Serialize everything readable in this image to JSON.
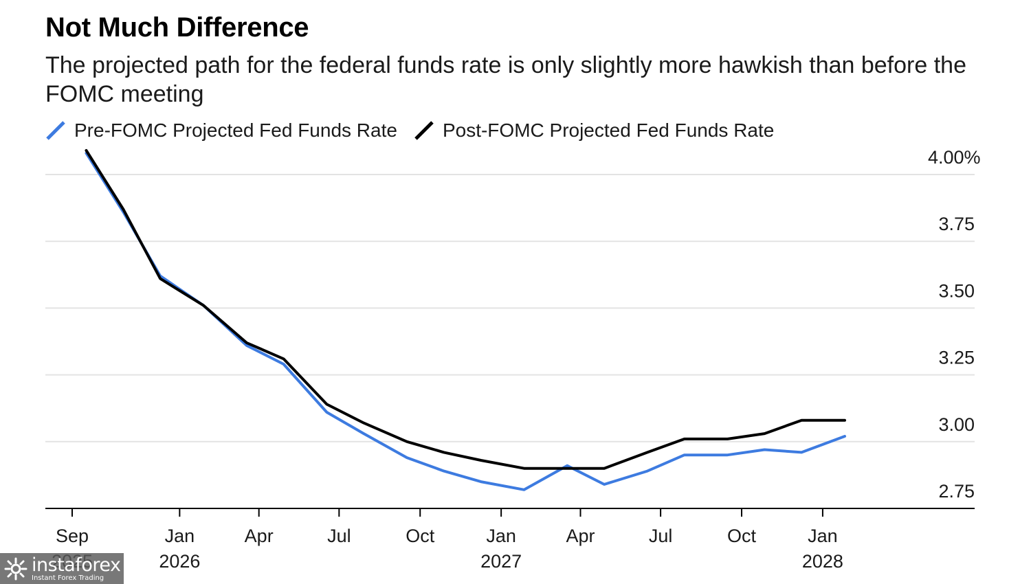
{
  "title": "Not Much Difference",
  "subtitle": "The projected path for the federal funds rate is only slightly more hawkish than before the FOMC meeting",
  "watermark": {
    "name": "instaforex",
    "tagline": "Instant Forex Trading"
  },
  "colors": {
    "pre": "#3d7be0",
    "post": "#000000",
    "grid": "#e3e3e3",
    "axis": "#000000"
  },
  "chart_data": {
    "type": "line",
    "title": "Not Much Difference",
    "subtitle": "The projected path for the federal funds rate is only slightly more hawkish than before the FOMC meeting",
    "xlabel": "",
    "ylabel": "",
    "ylim": [
      2.68,
      4.08
    ],
    "xlim": [
      "2025-09-01",
      "2028-05-01"
    ],
    "grid": true,
    "legend_position": "top-left",
    "y_axis_side": "right",
    "y_ticks": [
      {
        "value": 4.0,
        "label": "4.00%"
      },
      {
        "value": 3.75,
        "label": "3.75"
      },
      {
        "value": 3.5,
        "label": "3.50"
      },
      {
        "value": 3.25,
        "label": "3.25"
      },
      {
        "value": 3.0,
        "label": "3.00"
      },
      {
        "value": 2.75,
        "label": "2.75"
      }
    ],
    "x_ticks": [
      {
        "date": "2025-09-01",
        "month": "Sep",
        "year": "2025"
      },
      {
        "date": "2026-01-01",
        "month": "Jan",
        "year": "2026"
      },
      {
        "date": "2026-04-01",
        "month": "Apr",
        "year": ""
      },
      {
        "date": "2026-07-01",
        "month": "Jul",
        "year": ""
      },
      {
        "date": "2026-10-01",
        "month": "Oct",
        "year": ""
      },
      {
        "date": "2027-01-01",
        "month": "Jan",
        "year": "2027"
      },
      {
        "date": "2027-04-01",
        "month": "Apr",
        "year": ""
      },
      {
        "date": "2027-07-01",
        "month": "Jul",
        "year": ""
      },
      {
        "date": "2027-10-01",
        "month": "Oct",
        "year": ""
      },
      {
        "date": "2028-01-01",
        "month": "Jan",
        "year": "2028"
      }
    ],
    "series": [
      {
        "name": "Pre-FOMC Projected Fed Funds Rate",
        "color": "#3d7be0",
        "points": [
          {
            "x": "2025-09-17",
            "y": 4.08
          },
          {
            "x": "2025-10-29",
            "y": 3.86
          },
          {
            "x": "2025-12-10",
            "y": 3.62
          },
          {
            "x": "2026-01-28",
            "y": 3.51
          },
          {
            "x": "2026-03-18",
            "y": 3.36
          },
          {
            "x": "2026-04-29",
            "y": 3.29
          },
          {
            "x": "2026-06-17",
            "y": 3.11
          },
          {
            "x": "2026-07-29",
            "y": 3.03
          },
          {
            "x": "2026-09-16",
            "y": 2.94
          },
          {
            "x": "2026-10-28",
            "y": 2.89
          },
          {
            "x": "2026-12-09",
            "y": 2.85
          },
          {
            "x": "2027-01-27",
            "y": 2.82
          },
          {
            "x": "2027-03-17",
            "y": 2.91
          },
          {
            "x": "2027-04-28",
            "y": 2.84
          },
          {
            "x": "2027-06-16",
            "y": 2.89
          },
          {
            "x": "2027-07-28",
            "y": 2.95
          },
          {
            "x": "2027-09-15",
            "y": 2.95
          },
          {
            "x": "2027-10-27",
            "y": 2.97
          },
          {
            "x": "2027-12-08",
            "y": 2.96
          },
          {
            "x": "2028-01-26",
            "y": 3.02
          }
        ]
      },
      {
        "name": "Post-FOMC Projected Fed Funds Rate",
        "color": "#000000",
        "points": [
          {
            "x": "2025-09-17",
            "y": 4.09
          },
          {
            "x": "2025-10-29",
            "y": 3.87
          },
          {
            "x": "2025-12-10",
            "y": 3.61
          },
          {
            "x": "2026-01-28",
            "y": 3.51
          },
          {
            "x": "2026-03-18",
            "y": 3.37
          },
          {
            "x": "2026-04-29",
            "y": 3.31
          },
          {
            "x": "2026-06-17",
            "y": 3.14
          },
          {
            "x": "2026-07-29",
            "y": 3.07
          },
          {
            "x": "2026-09-16",
            "y": 3.0
          },
          {
            "x": "2026-10-28",
            "y": 2.96
          },
          {
            "x": "2026-12-09",
            "y": 2.93
          },
          {
            "x": "2027-01-27",
            "y": 2.9
          },
          {
            "x": "2027-03-17",
            "y": 2.9
          },
          {
            "x": "2027-04-28",
            "y": 2.9
          },
          {
            "x": "2027-06-16",
            "y": 2.96
          },
          {
            "x": "2027-07-28",
            "y": 3.01
          },
          {
            "x": "2027-09-15",
            "y": 3.01
          },
          {
            "x": "2027-10-27",
            "y": 3.03
          },
          {
            "x": "2027-12-08",
            "y": 3.08
          },
          {
            "x": "2028-01-26",
            "y": 3.08
          }
        ]
      }
    ]
  }
}
